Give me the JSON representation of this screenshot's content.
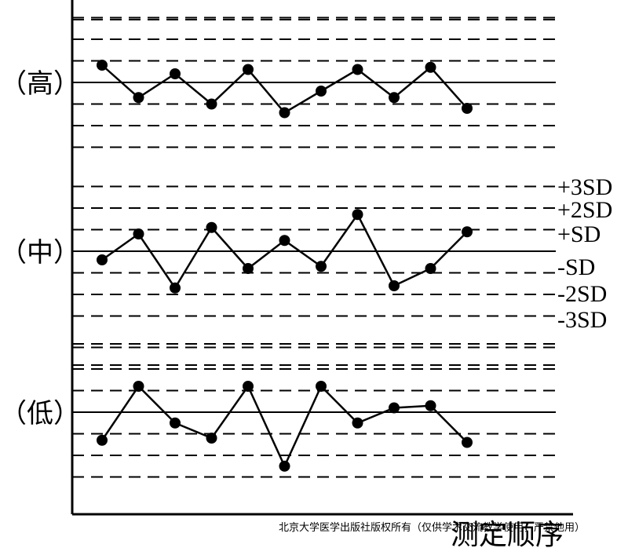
{
  "chart_data": {
    "type": "line",
    "title": "",
    "xlabel": "测定顺序",
    "ylabel": "",
    "levels": [
      "（高）",
      "（中）",
      "（低）"
    ],
    "sd_labels": [
      "+3SD",
      "+2SD",
      "+SD",
      "-SD",
      "-2SD",
      "-3SD"
    ],
    "sd_values": [
      3,
      2,
      1,
      -1,
      -2,
      -3
    ],
    "ylim": [
      -3.5,
      3.5
    ],
    "grid": "dashed at ±1SD, ±2SD, ±3SD; solid at mean",
    "series": [
      {
        "name": "（高）",
        "x": [
          1,
          2,
          3,
          4,
          5,
          6,
          7,
          8,
          9,
          10,
          11
        ],
        "values": [
          0.8,
          -0.7,
          0.4,
          -1.0,
          0.6,
          -1.4,
          -0.4,
          0.6,
          -0.7,
          0.7,
          -1.2
        ]
      },
      {
        "name": "（中）",
        "x": [
          1,
          2,
          3,
          4,
          5,
          6,
          7,
          8,
          9,
          10,
          11
        ],
        "values": [
          -0.4,
          0.8,
          -1.7,
          1.1,
          -0.8,
          0.5,
          -0.7,
          1.7,
          -1.6,
          -0.8,
          0.9
        ]
      },
      {
        "name": "（低）",
        "x": [
          1,
          2,
          3,
          4,
          5,
          6,
          7,
          8,
          9,
          10,
          11
        ],
        "values": [
          -1.3,
          1.2,
          -0.5,
          -1.2,
          1.2,
          -2.5,
          1.2,
          -0.5,
          0.2,
          0.3,
          -1.4
        ]
      }
    ]
  },
  "footer": "北京大学医学出版社版权所有（仅供学术交流教学使用，严禁他用）"
}
